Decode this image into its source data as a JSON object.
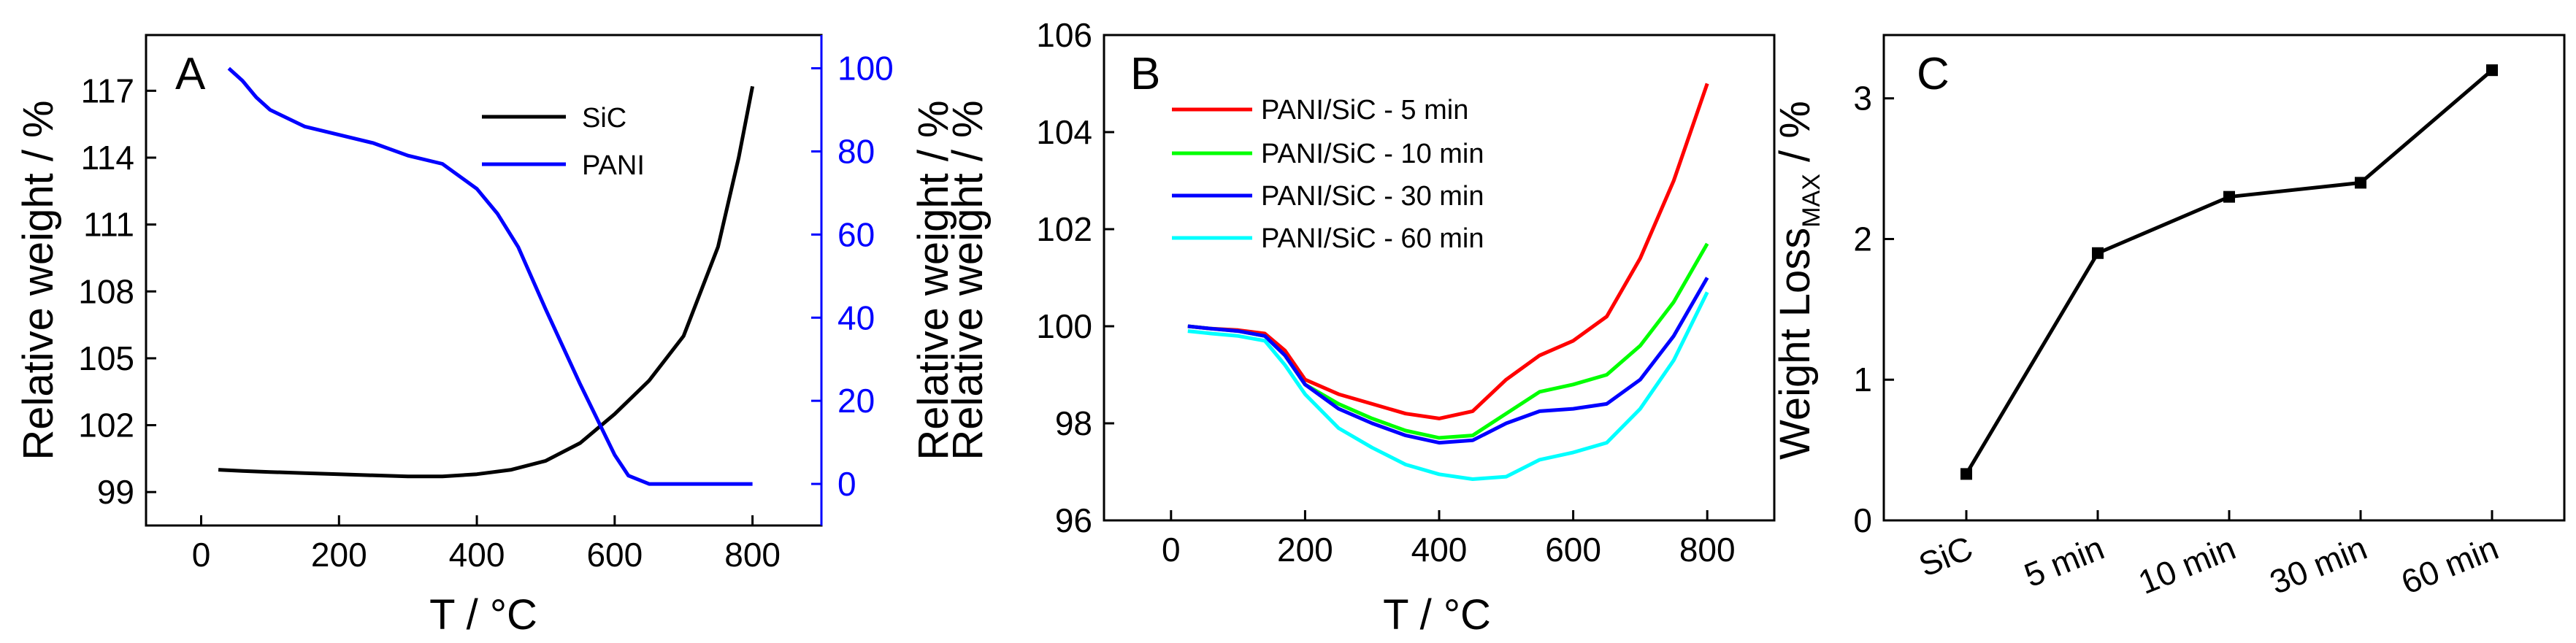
{
  "chart_data": [
    {
      "panel": "A",
      "type": "line",
      "xlabel": "T / °C",
      "ylabel": "Relative weight / %",
      "y2label": "Relative weight / %",
      "xlim": [
        -80,
        900
      ],
      "ylim": [
        97.5,
        119.5
      ],
      "y2lim": [
        -10,
        108
      ],
      "xticks": [
        0,
        200,
        400,
        600,
        800
      ],
      "yticks": [
        99,
        102,
        105,
        108,
        111,
        114,
        117
      ],
      "y2ticks": [
        0,
        20,
        40,
        60,
        80,
        100
      ],
      "series": [
        {
          "name": "SiC",
          "axis": "left",
          "color": "#000000",
          "x": [
            25,
            60,
            100,
            150,
            200,
            250,
            300,
            350,
            400,
            450,
            500,
            550,
            600,
            650,
            700,
            750,
            780,
            800
          ],
          "y": [
            100.0,
            99.95,
            99.9,
            99.85,
            99.8,
            99.75,
            99.7,
            99.7,
            99.8,
            100.0,
            100.4,
            101.2,
            102.5,
            104.0,
            106.0,
            110.0,
            114.0,
            117.2
          ]
        },
        {
          "name": "PANI",
          "axis": "right",
          "color": "#0000ff",
          "x": [
            40,
            60,
            80,
            100,
            150,
            200,
            250,
            300,
            350,
            400,
            430,
            460,
            500,
            550,
            600,
            620,
            650,
            700,
            750,
            800
          ],
          "y": [
            100,
            97,
            93,
            90,
            86,
            84,
            82,
            79,
            77,
            71,
            65,
            57,
            42,
            24,
            7,
            2,
            0,
            0,
            0,
            0
          ]
        }
      ]
    },
    {
      "panel": "B",
      "type": "line",
      "xlabel": "T / °C",
      "ylabel": "Relative weight / %",
      "xlim": [
        -100,
        900
      ],
      "ylim": [
        96,
        106
      ],
      "xticks": [
        0,
        200,
        400,
        600,
        800
      ],
      "yticks": [
        96,
        98,
        100,
        102,
        104,
        106
      ],
      "series": [
        {
          "name": "PANI/SiC - 5 min",
          "color": "#ff0000",
          "x": [
            25,
            60,
            100,
            140,
            170,
            200,
            250,
            300,
            350,
            400,
            450,
            500,
            550,
            600,
            650,
            700,
            750,
            800
          ],
          "y": [
            100.0,
            99.95,
            99.92,
            99.85,
            99.5,
            98.9,
            98.6,
            98.4,
            98.2,
            98.1,
            98.25,
            98.9,
            99.4,
            99.7,
            100.2,
            101.4,
            103.0,
            105.0
          ]
        },
        {
          "name": "PANI/SiC - 10 min",
          "color": "#00ff00",
          "x": [
            25,
            60,
            100,
            140,
            170,
            200,
            250,
            300,
            350,
            400,
            450,
            500,
            550,
            600,
            650,
            700,
            750,
            800
          ],
          "y": [
            100.0,
            99.95,
            99.9,
            99.8,
            99.4,
            98.8,
            98.4,
            98.1,
            97.85,
            97.7,
            97.75,
            98.2,
            98.65,
            98.8,
            99.0,
            99.6,
            100.5,
            101.7
          ]
        },
        {
          "name": "PANI/SiC - 30 min",
          "color": "#0000ff",
          "x": [
            25,
            60,
            100,
            140,
            170,
            200,
            250,
            300,
            350,
            400,
            450,
            500,
            550,
            600,
            650,
            700,
            750,
            800
          ],
          "y": [
            100.0,
            99.95,
            99.9,
            99.8,
            99.4,
            98.8,
            98.3,
            98.0,
            97.75,
            97.6,
            97.65,
            98.0,
            98.25,
            98.3,
            98.4,
            98.9,
            99.8,
            101.0
          ]
        },
        {
          "name": "PANI/SiC - 60 min",
          "color": "#00ffff",
          "x": [
            25,
            60,
            100,
            140,
            170,
            200,
            250,
            300,
            350,
            400,
            450,
            500,
            550,
            600,
            650,
            700,
            750,
            800
          ],
          "y": [
            99.9,
            99.85,
            99.8,
            99.7,
            99.2,
            98.6,
            97.9,
            97.5,
            97.15,
            96.95,
            96.85,
            96.9,
            97.25,
            97.4,
            97.6,
            98.3,
            99.3,
            100.7
          ]
        }
      ]
    },
    {
      "panel": "C",
      "type": "line",
      "xlabel": "",
      "ylabel_main": "Weight Loss",
      "ylabel_sub": "MAX",
      "ylabel_unit": " / %",
      "ylim": [
        0,
        3.45
      ],
      "yticks": [
        0,
        1,
        2,
        3
      ],
      "categories": [
        "SiC",
        "5 min",
        "10 min",
        "30 min",
        "60 min"
      ],
      "values": [
        0.33,
        1.9,
        2.3,
        2.4,
        3.2
      ],
      "color": "#000000",
      "markers": true
    }
  ]
}
